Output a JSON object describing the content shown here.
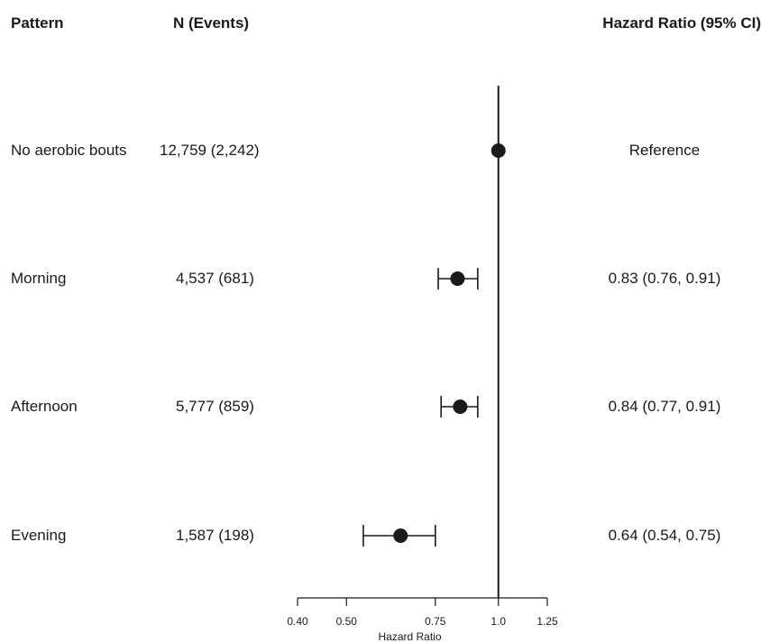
{
  "headers": {
    "pattern": "Pattern",
    "n_events": "N (Events)",
    "hr_ci": "Hazard Ratio (95% CI)"
  },
  "rows": [
    {
      "pattern": "No aerobic bouts",
      "n_events": "12,759 (2,242)",
      "hr_text": "Reference"
    },
    {
      "pattern": "Morning",
      "n_events": "4,537 (681)",
      "hr_text": "0.83 (0.76, 0.91)"
    },
    {
      "pattern": "Afternoon",
      "n_events": "5,777 (859)",
      "hr_text": "0.84 (0.77, 0.91)"
    },
    {
      "pattern": "Evening",
      "n_events": "1,587 (198)",
      "hr_text": "0.64 (0.54, 0.75)"
    }
  ],
  "chart_data": {
    "type": "forest",
    "xlabel": "Hazard Ratio",
    "x_scale": "log",
    "xlim": [
      0.4,
      1.25
    ],
    "x_ticks": [
      0.4,
      0.5,
      0.75,
      1.0,
      1.25
    ],
    "x_tick_labels": [
      "0.40",
      "0.50",
      "0.75",
      "1.0",
      "1.25"
    ],
    "reference_line": 1.0,
    "points": [
      {
        "category": "No aerobic bouts",
        "hr": 1.0,
        "lower": null,
        "upper": null
      },
      {
        "category": "Morning",
        "hr": 0.83,
        "lower": 0.76,
        "upper": 0.91
      },
      {
        "category": "Afternoon",
        "hr": 0.84,
        "lower": 0.77,
        "upper": 0.91
      },
      {
        "category": "Evening",
        "hr": 0.64,
        "lower": 0.54,
        "upper": 0.75
      }
    ],
    "colors": {
      "marker": "#1a1a1a",
      "line": "#1a1a1a"
    }
  }
}
